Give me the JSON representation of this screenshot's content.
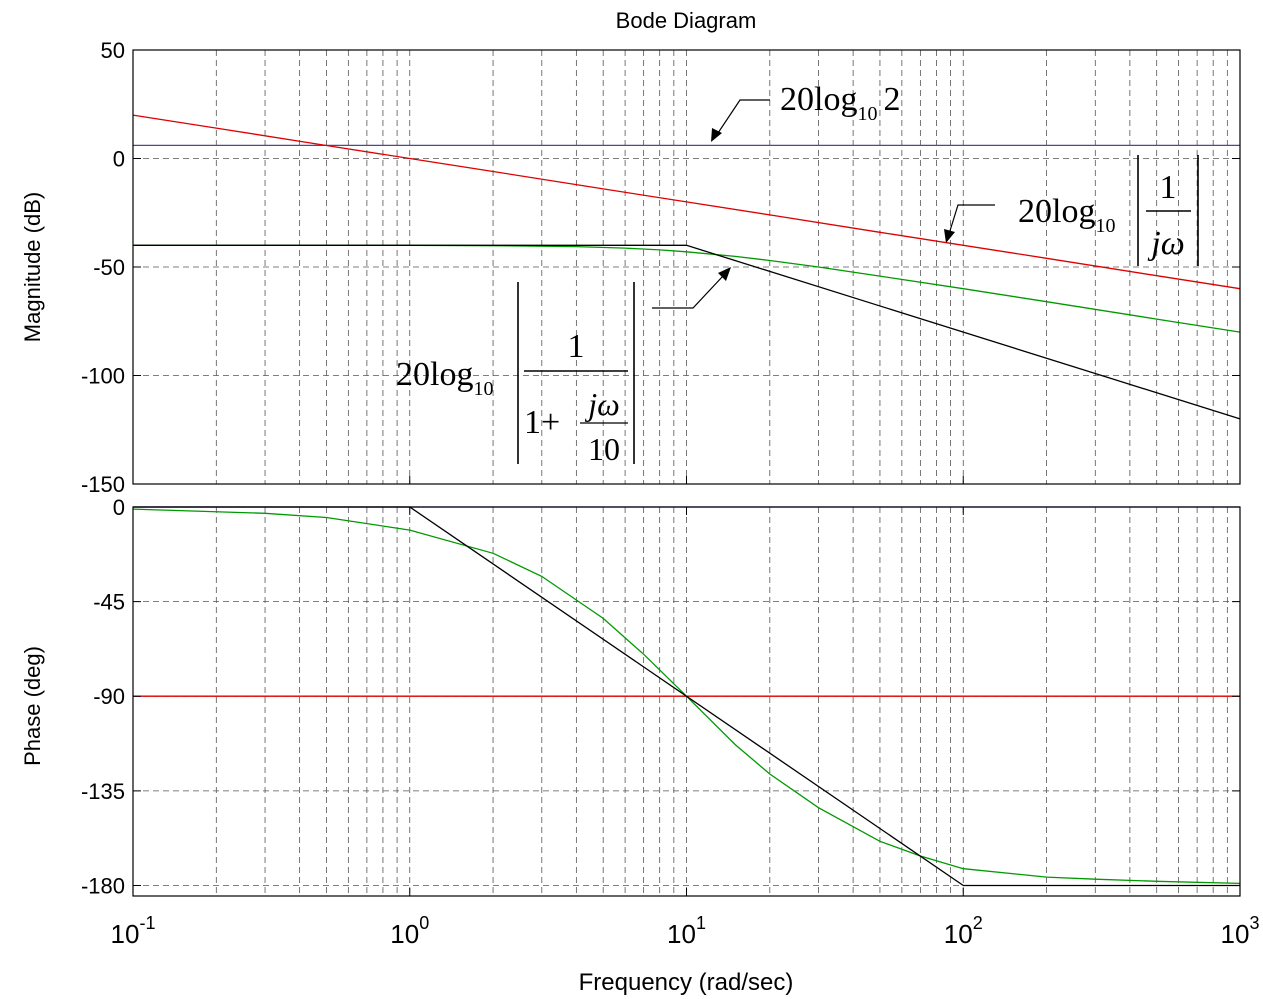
{
  "title": "Bode Diagram",
  "xlabel": "Frequency  (rad/sec)",
  "x_tick_labels": [
    {
      "base": "10",
      "exp": "-1"
    },
    {
      "base": "10",
      "exp": "0"
    },
    {
      "base": "10",
      "exp": "1"
    },
    {
      "base": "10",
      "exp": "2"
    },
    {
      "base": "10",
      "exp": "3"
    }
  ],
  "magnitude_panel": {
    "ylabel": "Magnitude (dB)",
    "y_tick_labels": [
      "50",
      "0",
      "-50",
      "-100",
      "-150"
    ]
  },
  "phase_panel": {
    "ylabel": "Phase (deg)",
    "y_tick_labels": [
      "0",
      "-45",
      "-90",
      "-135",
      "-180"
    ]
  },
  "annotations": {
    "constant": {
      "prefix": "20log",
      "sub": "10",
      "arg": "2"
    },
    "integrator": {
      "prefix": "20log",
      "sub": "10",
      "num": "1",
      "den_j": "j",
      "den_w": "ω"
    },
    "first_order": {
      "prefix": "20log",
      "sub": "10",
      "num": "1",
      "den_one_plus": "1+",
      "inner_num_j": "j",
      "inner_num_w": "ω",
      "inner_den": "10"
    }
  },
  "colors": {
    "constant": "#4a4a8c",
    "integrator": "#dd0000",
    "first_order_exact": "#009900",
    "asymptote": "#000000",
    "grid": "#555555",
    "phase_zero": "#3333aa"
  },
  "chart_data": [
    {
      "type": "line",
      "panel": "magnitude",
      "xscale": "log",
      "xlim": [
        0.1,
        1000
      ],
      "ylim": [
        -150,
        50
      ],
      "grid": true,
      "ylabel": "Magnitude (dB)",
      "series": [
        {
          "color": "#4a4a8c",
          "x": [
            0.1,
            1000
          ],
          "y": [
            6.02,
            6.02
          ]
        },
        {
          "color": "#dd0000",
          "x": [
            0.1,
            0.2,
            0.5,
            1,
            2,
            5,
            10,
            20,
            50,
            100,
            200,
            500,
            1000
          ],
          "y": [
            20,
            14,
            6,
            0,
            -6,
            -14,
            -20,
            -26,
            -34,
            -40,
            -46,
            -54,
            -60
          ]
        },
        {
          "color": "#009900",
          "x": [
            0.1,
            1,
            2,
            4,
            6,
            8,
            10,
            15,
            20,
            30,
            50,
            100,
            200,
            500,
            1000
          ],
          "y": [
            -40,
            -40,
            -40.2,
            -40.6,
            -41.3,
            -42.1,
            -43,
            -45.1,
            -47,
            -50,
            -54.2,
            -60,
            -66,
            -74,
            -80
          ]
        },
        {
          "color": "#000000",
          "x": [
            0.1,
            10,
            1000
          ],
          "y": [
            -40,
            -40,
            -120
          ]
        }
      ]
    },
    {
      "type": "line",
      "panel": "phase",
      "xscale": "log",
      "xlim": [
        0.1,
        1000
      ],
      "ylim": [
        -185,
        0
      ],
      "grid": true,
      "ylabel": "Phase (deg)",
      "series": [
        {
          "color": "#3333aa",
          "x": [
            0.1,
            1000
          ],
          "y": [
            0,
            0
          ]
        },
        {
          "color": "#dd0000",
          "x": [
            0.1,
            1000
          ],
          "y": [
            -90,
            -90
          ]
        },
        {
          "color": "#009900",
          "x": [
            0.1,
            0.3,
            0.5,
            1,
            2,
            3,
            5,
            7,
            10,
            15,
            20,
            30,
            50,
            70,
            100,
            200,
            300,
            500,
            1000
          ],
          "y": [
            -1,
            -3,
            -5,
            -11,
            -22,
            -33,
            -53,
            -70,
            -90,
            -113,
            -127,
            -143,
            -159,
            -166,
            -172,
            -176,
            -177,
            -178,
            -179
          ]
        },
        {
          "color": "#000000",
          "x": [
            0.1,
            1,
            100,
            1000
          ],
          "y": [
            0,
            0,
            -180,
            -180
          ]
        }
      ]
    }
  ]
}
